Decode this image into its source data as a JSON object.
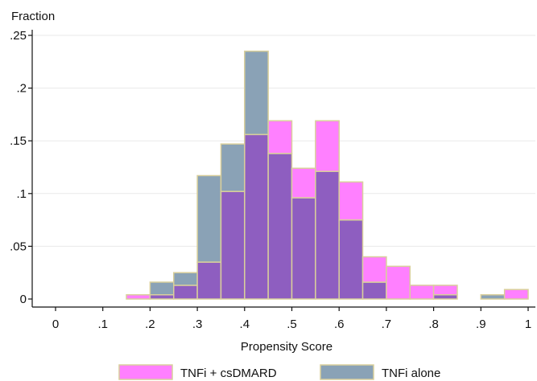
{
  "chart_data": {
    "type": "bar",
    "subtype": "overlaid-histogram",
    "ylabel": "Fraction",
    "xlabel": "Propensity Score",
    "xlim": [
      -0.05,
      1.0
    ],
    "ylim": [
      0,
      0.25
    ],
    "xticks": [
      "0",
      ".1",
      ".2",
      ".3",
      ".4",
      ".5",
      ".6",
      ".7",
      ".8",
      ".9",
      "1"
    ],
    "yticks": [
      "0",
      ".05",
      ".1",
      ".15",
      ".2",
      ".25"
    ],
    "bin_width": 0.05,
    "bin_starts": [
      0.15,
      0.2,
      0.25,
      0.3,
      0.35,
      0.4,
      0.45,
      0.5,
      0.55,
      0.6,
      0.65,
      0.7,
      0.75,
      0.8,
      0.85,
      0.9,
      0.95
    ],
    "series": [
      {
        "name": "TNFi + csDMARD",
        "color": "#ff80ff",
        "values": [
          0.004,
          0.004,
          0.013,
          0.035,
          0.102,
          0.156,
          0.169,
          0.124,
          0.169,
          0.111,
          0.04,
          0.031,
          0.013,
          0.013,
          0.0,
          0.0,
          0.009
        ]
      },
      {
        "name": "TNFi alone",
        "color": "#8aa2b6",
        "values": [
          0.0,
          0.016,
          0.025,
          0.117,
          0.147,
          0.235,
          0.138,
          0.096,
          0.121,
          0.075,
          0.016,
          0.0,
          0.0,
          0.004,
          0.0,
          0.004,
          0.0
        ]
      }
    ],
    "overlap_color": "#8e5ec0",
    "edge_color": "#d9cf9b",
    "grid": "horizontal",
    "legend_position": "bottom"
  }
}
